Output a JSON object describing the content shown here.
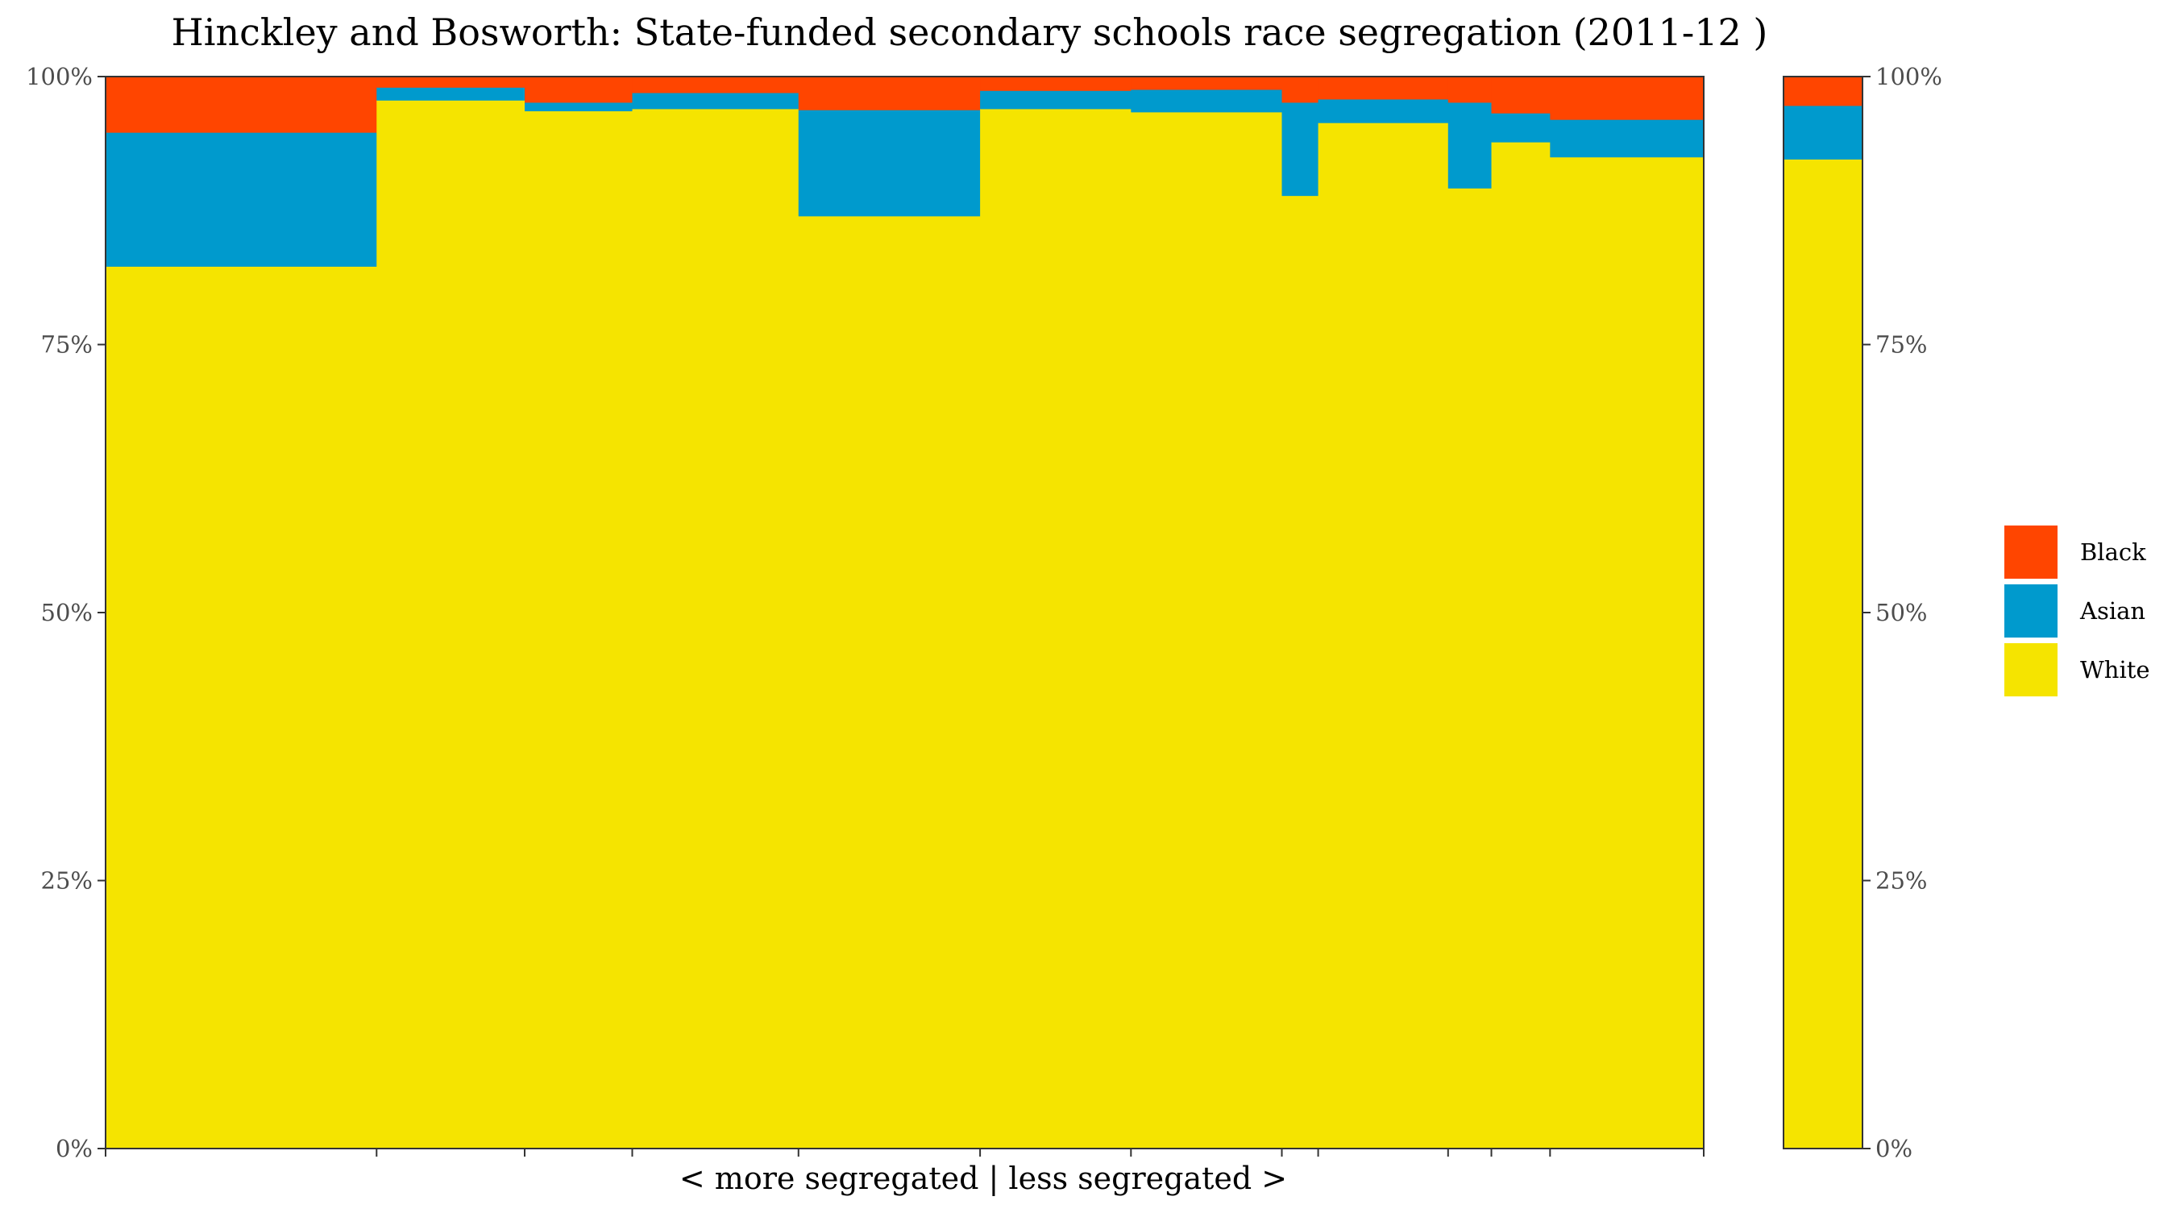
{
  "chart_data": {
    "type": "bar",
    "subtype": "stacked-mekko",
    "title": "Hinckley and Bosworth: State-funded secondary schools race segregation (2011-12 )",
    "xlabel": "< more segregated | less segregated >",
    "ylabel": "",
    "ylim": [
      0,
      1
    ],
    "yticks": [
      "0%",
      "25%",
      "50%",
      "75%",
      "100%"
    ],
    "ytick_values": [
      0,
      0.25,
      0.5,
      0.75,
      1.0
    ],
    "legend_position": "right",
    "grid": false,
    "series_order": [
      "White",
      "Asian",
      "Black"
    ],
    "legend": [
      {
        "name": "Black",
        "color": "#FF4500"
      },
      {
        "name": "Asian",
        "color": "#009ACD"
      },
      {
        "name": "White",
        "color": "#F5E400"
      }
    ],
    "schools": [
      {
        "width": 194,
        "White": 0.823,
        "Asian": 0.125,
        "Black": 0.052
      },
      {
        "width": 106,
        "White": 0.978,
        "Asian": 0.012,
        "Black": 0.01
      },
      {
        "width": 77,
        "White": 0.968,
        "Asian": 0.008,
        "Black": 0.024
      },
      {
        "width": 119,
        "White": 0.97,
        "Asian": 0.015,
        "Black": 0.015
      },
      {
        "width": 130,
        "White": 0.87,
        "Asian": 0.099,
        "Black": 0.031
      },
      {
        "width": 108,
        "White": 0.97,
        "Asian": 0.017,
        "Black": 0.013
      },
      {
        "width": 108,
        "White": 0.967,
        "Asian": 0.021,
        "Black": 0.012
      },
      {
        "width": 26,
        "White": 0.889,
        "Asian": 0.087,
        "Black": 0.024
      },
      {
        "width": 93,
        "White": 0.957,
        "Asian": 0.022,
        "Black": 0.021
      },
      {
        "width": 31,
        "White": 0.896,
        "Asian": 0.08,
        "Black": 0.024
      },
      {
        "width": 42,
        "White": 0.939,
        "Asian": 0.027,
        "Black": 0.034
      },
      {
        "width": 110,
        "White": 0.925,
        "Asian": 0.035,
        "Black": 0.04
      }
    ],
    "overall": {
      "label": "",
      "White": 0.923,
      "Asian": 0.05,
      "Black": 0.027
    }
  }
}
